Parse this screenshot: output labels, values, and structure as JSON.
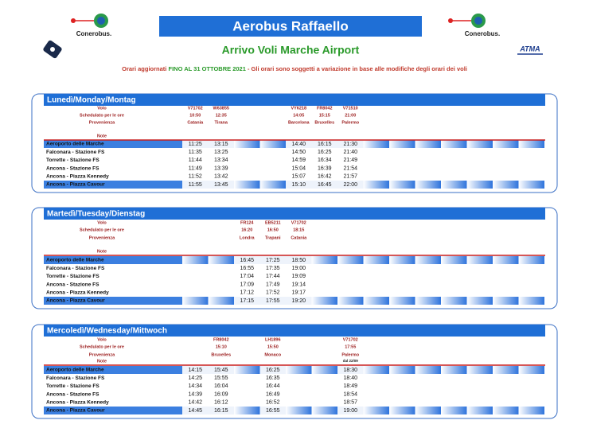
{
  "header": {
    "title": "Aerobus Raffaello",
    "subtitle": "Arrivo Voli Marche Airport",
    "notice_prefix": "Orari aggiornati ",
    "notice_highlight": "FINO AL 31 OTTOBRE 2021",
    "notice_rest": " - Gli orari sono soggetti a variazione in base alle modifiche degli orari dei voli",
    "logo_left": "Conerobus.",
    "logo_right": "Conerobus.",
    "logo_atma": "ATMA"
  },
  "row_labels": {
    "flight": "Volo",
    "time": "Schedulato per le ore",
    "origin": "Provenienza",
    "note": "Note"
  },
  "sections": [
    {
      "title": "Lunedì/Monday/Montag",
      "columns": [
        {
          "flight": "V71702",
          "time": "10:50",
          "origin": "Catania"
        },
        {
          "flight": "W63855",
          "time": "12:35",
          "origin": "Tirana"
        },
        null,
        null,
        {
          "flight": "VY6218",
          "time": "14:05",
          "origin": "Barcelona"
        },
        {
          "flight": "FR8042",
          "time": "15:15",
          "origin": "Bruxelles"
        },
        {
          "flight": "V71510",
          "time": "21:00",
          "origin": "Palermo"
        }
      ],
      "rows": [
        {
          "stop": "Aeroporto delle Marche",
          "times": [
            "11:25",
            "13:15",
            null,
            null,
            "14:40",
            "16:15",
            "21:30"
          ]
        },
        {
          "stop": "Falconara - Stazione FS",
          "times": [
            "11:35",
            "13:25",
            null,
            null,
            "14:50",
            "16:25",
            "21:40"
          ]
        },
        {
          "stop": "Torrette - Stazione FS",
          "times": [
            "11:44",
            "13:34",
            null,
            null,
            "14:59",
            "16:34",
            "21:49"
          ]
        },
        {
          "stop": "Ancona - Stazione FS",
          "times": [
            "11:49",
            "13:39",
            null,
            null,
            "15:04",
            "16:39",
            "21:54"
          ]
        },
        {
          "stop": "Ancona - Piazza Kennedy",
          "times": [
            "11:52",
            "13:42",
            null,
            null,
            "15:07",
            "16:42",
            "21:57"
          ]
        },
        {
          "stop": "Ancona - Piazza Cavour",
          "times": [
            "11:55",
            "13:45",
            null,
            null,
            "15:10",
            "16:45",
            "22:00"
          ]
        }
      ]
    },
    {
      "title": "Martedì/Tuesday/Dienstag",
      "columns": [
        null,
        null,
        {
          "flight": "FR124",
          "time": "16:20",
          "origin": "Londra"
        },
        {
          "flight": "EB5211",
          "time": "16:50",
          "origin": "Trapani"
        },
        {
          "flight": "V71702",
          "time": "18:15",
          "origin": "Catania"
        }
      ],
      "rows": [
        {
          "stop": "Aeroporto delle Marche",
          "times": [
            null,
            null,
            "16:45",
            "17:25",
            "18:50"
          ]
        },
        {
          "stop": "Falconara - Stazione FS",
          "times": [
            null,
            null,
            "16:55",
            "17:35",
            "19:00"
          ]
        },
        {
          "stop": "Torrette - Stazione FS",
          "times": [
            null,
            null,
            "17:04",
            "17:44",
            "19:09"
          ]
        },
        {
          "stop": "Ancona - Stazione FS",
          "times": [
            null,
            null,
            "17:09",
            "17:49",
            "19:14"
          ]
        },
        {
          "stop": "Ancona - Piazza Kennedy",
          "times": [
            null,
            null,
            "17:12",
            "17:52",
            "19:17"
          ]
        },
        {
          "stop": "Ancona - Piazza Cavour",
          "times": [
            null,
            null,
            "17:15",
            "17:55",
            "19:20"
          ]
        }
      ]
    },
    {
      "title": "Mercoledì/Wednesday/Mittwoch",
      "columns": [
        null,
        {
          "flight": "FR8042",
          "time": "15:10",
          "origin": "Bruxelles"
        },
        null,
        {
          "flight": "LH1896",
          "time": "15:50",
          "origin": "Monaco"
        },
        null,
        null,
        {
          "flight": "V71702",
          "time": "17:55",
          "origin": "Palermo",
          "note": "dal 22/09"
        }
      ],
      "rows": [
        {
          "stop": "Aeroporto delle Marche",
          "times": [
            "14:15",
            "15:45",
            null,
            "16:25",
            null,
            null,
            "18:30"
          ]
        },
        {
          "stop": "Falconara - Stazione FS",
          "times": [
            "14:25",
            "15:55",
            null,
            "16:35",
            null,
            null,
            "18:40"
          ]
        },
        {
          "stop": "Torrette - Stazione FS",
          "times": [
            "14:34",
            "16:04",
            null,
            "16:44",
            null,
            null,
            "18:49"
          ]
        },
        {
          "stop": "Ancona - Stazione FS",
          "times": [
            "14:39",
            "16:09",
            null,
            "16:49",
            null,
            null,
            "18:54"
          ]
        },
        {
          "stop": "Ancona - Piazza Kennedy",
          "times": [
            "14:42",
            "16:12",
            null,
            "16:52",
            null,
            null,
            "18:57"
          ]
        },
        {
          "stop": "Ancona - Piazza Cavour",
          "times": [
            "14:45",
            "16:15",
            null,
            "16:55",
            null,
            null,
            "19:00"
          ]
        }
      ]
    }
  ]
}
